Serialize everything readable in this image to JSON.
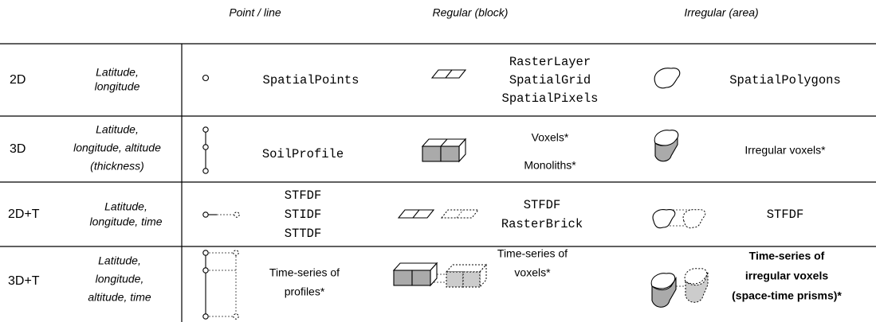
{
  "header": {
    "columns": [
      "Point / line",
      "Regular (block)",
      "Irregular (area)"
    ]
  },
  "rows": [
    {
      "dimension": "2D",
      "description": [
        "Latitude,",
        "longitude"
      ],
      "point": [
        "SpatialPoints"
      ],
      "block": [
        "RasterLayer",
        "SpatialGrid",
        "SpatialPixels"
      ],
      "area": [
        "SpatialPolygons"
      ]
    },
    {
      "dimension": "3D",
      "description": [
        "Latitude,",
        "longitude, altitude",
        "(thickness)"
      ],
      "point": [
        "SoilProfile"
      ],
      "block": [
        "Voxels*",
        "Monoliths*"
      ],
      "area": [
        "Irregular voxels*"
      ]
    },
    {
      "dimension": "2D+T",
      "description": [
        "Latitude,",
        "longitude, time"
      ],
      "point": [
        "STFDF",
        "STIDF",
        "STTDF"
      ],
      "block": [
        "STFDF",
        "RasterBrick"
      ],
      "area": [
        "STFDF"
      ]
    },
    {
      "dimension": "3D+T",
      "description": [
        "Latitude,",
        "longitude,",
        "altitude, time"
      ],
      "point": [
        "Time-series of",
        "profiles*"
      ],
      "block": [
        "Time-series of",
        "voxels*"
      ],
      "area": [
        "Time-series of",
        "irregular voxels",
        "(space-time prisms)*"
      ]
    }
  ]
}
